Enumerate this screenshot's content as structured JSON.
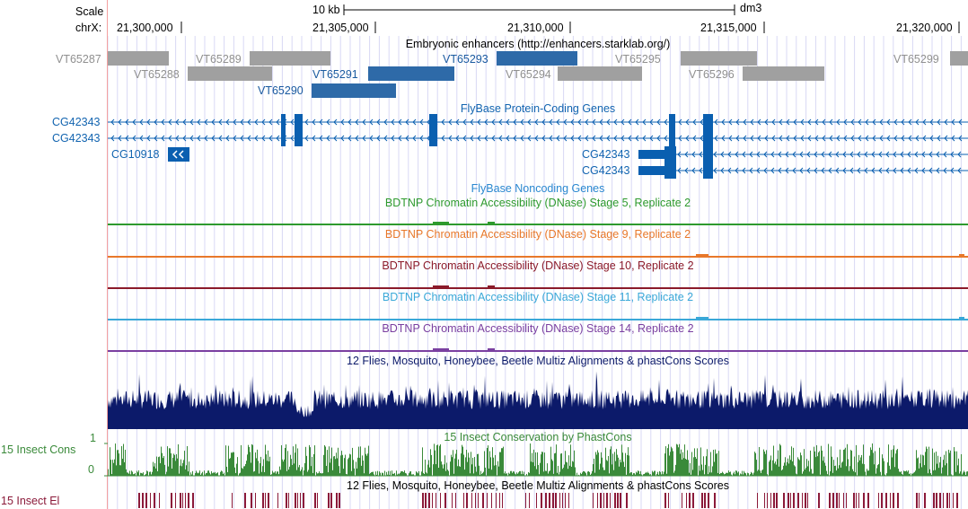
{
  "colors": {
    "gray_feature": "#a0a0a0",
    "gray_label": "#909090",
    "blue_feature": "#2e6aa8",
    "gene_blue": "#0a5fb0",
    "gene_label": "#1264b0",
    "green": "#2e9a2e",
    "orange": "#e8782a",
    "darkred": "#8b1a2a",
    "lightblue": "#3aa8d8",
    "purple": "#7a3fa0",
    "navy": "#0c1a6a",
    "cons_green": "#3a8a3a",
    "elem_maroon": "#8b1a3a",
    "grid": "#d8d8f4"
  },
  "header": {
    "scale_label": "Scale",
    "chrom_label": "chrX:",
    "scale_bar_label": "10 kb",
    "assembly": "dm3",
    "ticks": [
      "21,300,000",
      "21,305,000",
      "21,310,000",
      "21,315,000",
      "21,320,000"
    ]
  },
  "enhancers": {
    "title": "Embryonic enhancers (http://enhancers.starklab.org/)",
    "items": [
      "VT65287",
      "VT65288",
      "VT65289",
      "VT65290",
      "VT65291",
      "VT65293",
      "VT65294",
      "VT65295",
      "VT65296",
      "VT65299"
    ]
  },
  "genes": {
    "title": "FlyBase Protein-Coding Genes",
    "labels": [
      "CG42343",
      "CG42343",
      "CG10918",
      "CG42343",
      "CG42343"
    ]
  },
  "noncoding": {
    "title": "FlyBase Noncoding Genes"
  },
  "dnase": {
    "stage5": "BDTNP Chromatin Accessibility (DNase) Stage 5, Replicate 2",
    "stage9": "BDTNP Chromatin Accessibility (DNase) Stage 9, Replicate 2",
    "stage10": "BDTNP Chromatin Accessibility (DNase) Stage 10, Replicate 2",
    "stage11": "BDTNP Chromatin Accessibility (DNase) Stage 11, Replicate 2",
    "stage14": "BDTNP Chromatin Accessibility (DNase) Stage 14, Replicate 2"
  },
  "multiz": {
    "title": "12 Flies, Mosquito, Honeybee, Beetle Multiz Alignments & phastCons Scores"
  },
  "conservation": {
    "side_label": "15 Insect Cons",
    "title": "15 Insect Conservation by PhastCons",
    "axis_top": "1",
    "axis_bottom": "0"
  },
  "elements": {
    "side_label": "15 Insect El",
    "title": "12 Flies, Mosquito, Honeybee, Beetle Multiz Alignments & phastCons Scores"
  }
}
